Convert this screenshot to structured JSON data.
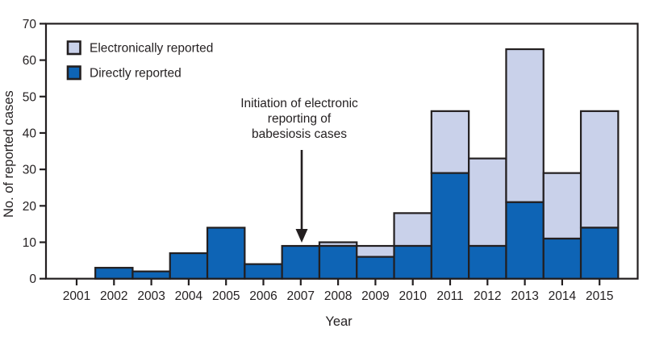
{
  "figure": {
    "ylabel": "No. of reported cases",
    "xlabel": "Year",
    "legend": {
      "electronic_label": "Electronically reported",
      "direct_label": "Directly reported"
    },
    "annotation": {
      "line1": "Initiation of electronic",
      "line2": "reporting of",
      "line3": "babesiosis cases"
    }
  },
  "colors": {
    "direct": "#0E64B5",
    "electronic": "#C9D1EA",
    "frame": "#231F20",
    "text": "#231F20"
  },
  "chart_data": {
    "type": "bar",
    "stacked": true,
    "title": "",
    "xlabel": "Year",
    "ylabel": "No. of reported cases",
    "categories": [
      2001,
      2002,
      2003,
      2004,
      2005,
      2006,
      2007,
      2008,
      2009,
      2010,
      2011,
      2012,
      2013,
      2014,
      2015
    ],
    "series": [
      {
        "name": "Directly reported",
        "color": "#0E64B5",
        "values": [
          0,
          3,
          2,
          7,
          14,
          4,
          9,
          9,
          6,
          9,
          29,
          9,
          21,
          11,
          14
        ]
      },
      {
        "name": "Electronically reported",
        "color": "#C9D1EA",
        "values": [
          0,
          0,
          0,
          0,
          0,
          0,
          0,
          1,
          3,
          9,
          17,
          24,
          42,
          18,
          32
        ]
      }
    ],
    "totals": [
      0,
      3,
      2,
      7,
      14,
      4,
      9,
      10,
      9,
      18,
      46,
      33,
      63,
      29,
      46
    ],
    "ylim": [
      0,
      70
    ],
    "yticks": [
      0,
      10,
      20,
      30,
      40,
      50,
      60,
      70
    ],
    "grid": false,
    "legend_position": "upper-left",
    "annotation": {
      "text": "Initiation of electronic reporting of babesiosis cases",
      "arrow_points_to_year": 2007
    }
  }
}
